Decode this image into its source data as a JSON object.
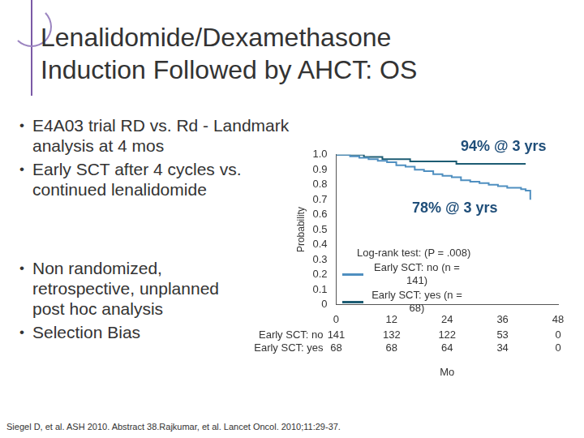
{
  "title": [
    "Lenalidomide/Dexamethasone",
    "Induction Followed by AHCT: OS"
  ],
  "bullets_top": [
    "E4A03 trial RD vs. Rd - Landmark analysis at 4 mos",
    "Early SCT after 4 cycles vs. continued lenalidomide"
  ],
  "bullets_bottom": [
    "Non randomized, retrospective, unplanned post hoc analysis",
    "Selection Bias"
  ],
  "citation": "Siegel D, et al. ASH 2010. Abstract 38.Rajkumar, et al. Lancet Oncol. 2010;11:29-37.",
  "chart_data": {
    "type": "line",
    "line_style": "step",
    "grid": false,
    "x_label": "Mo",
    "y_label": "Probability",
    "xlim": [
      0,
      48
    ],
    "xticks": [
      0,
      12,
      24,
      36,
      48
    ],
    "ylim": [
      0,
      1
    ],
    "yticks": [
      0,
      0.1,
      0.2,
      0.3,
      0.4,
      0.5,
      0.6,
      0.7,
      0.8,
      0.9,
      {
        "value": 1,
        "label": "1.0"
      }
    ],
    "annotations": [
      "94% @ 3 yrs",
      "78% @ 3 yrs"
    ],
    "test_label": "Log-rank test: (P = .008)",
    "series": [
      {
        "name": "Early SCT: no (n = 141)",
        "color": "#4f8fc0",
        "x": [
          0,
          3,
          5,
          7,
          9,
          11,
          13,
          15,
          17,
          19,
          21,
          23,
          25,
          27,
          29,
          31,
          33,
          35,
          37,
          40,
          41,
          42
        ],
        "values": [
          1,
          0.99,
          0.98,
          0.97,
          0.96,
          0.95,
          0.93,
          0.92,
          0.9,
          0.89,
          0.87,
          0.86,
          0.85,
          0.83,
          0.82,
          0.81,
          0.8,
          0.79,
          0.78,
          0.77,
          0.76,
          0.7
        ]
      },
      {
        "name": "Early SCT: yes (n = 68)",
        "color": "#1d5c73",
        "x": [
          0,
          6,
          10,
          16,
          26,
          41
        ],
        "values": [
          1,
          0.985,
          0.97,
          0.955,
          0.94,
          0.94
        ]
      }
    ],
    "at_risk": [
      {
        "label": "Early SCT: no",
        "values": [
          141,
          132,
          122,
          53,
          0
        ]
      },
      {
        "label": "Early SCT: yes",
        "values": [
          68,
          68,
          64,
          34,
          0
        ]
      }
    ]
  }
}
